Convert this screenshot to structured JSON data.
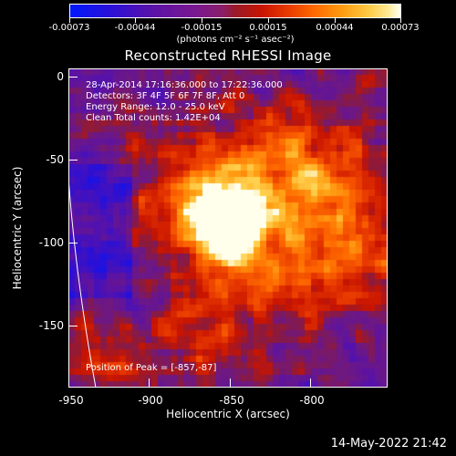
{
  "colorbar": {
    "tick_labels": [
      "-0.00073",
      "-0.00044",
      "-0.00015",
      "0.00015",
      "0.00044",
      "0.00073"
    ],
    "units": "(photons cm⁻² s⁻¹ asec⁻²)",
    "range": [
      -0.00073,
      0.00073
    ]
  },
  "title": "Reconstructed RHESSI Image",
  "info": {
    "time_range": "28-Apr-2014 17:16:36.000 to 17:22:36.000",
    "detectors": "Detectors: 3F 4F 5F 6F 7F 8F, Att 0",
    "energy_range": "Energy Range: 12.0 - 25.0 keV",
    "clean": "Clean     Total counts: 1.42E+04",
    "peak": "Position of Peak = [-857,-87]"
  },
  "axes": {
    "x_title": "Heliocentric X (arcsec)",
    "y_title": "Heliocentric Y (arcsec)",
    "x_range": [
      -950,
      -825
    ],
    "y_range": [
      -185,
      5
    ],
    "x_tick_labels": [
      "-950",
      "-900",
      "-850",
      "-800"
    ],
    "y_tick_labels": [
      "0",
      "-50",
      "-100",
      "-150"
    ]
  },
  "footer": "14-May-2022 21:42",
  "colors": {
    "background": "#000000",
    "limb_line": "#ffffff"
  }
}
